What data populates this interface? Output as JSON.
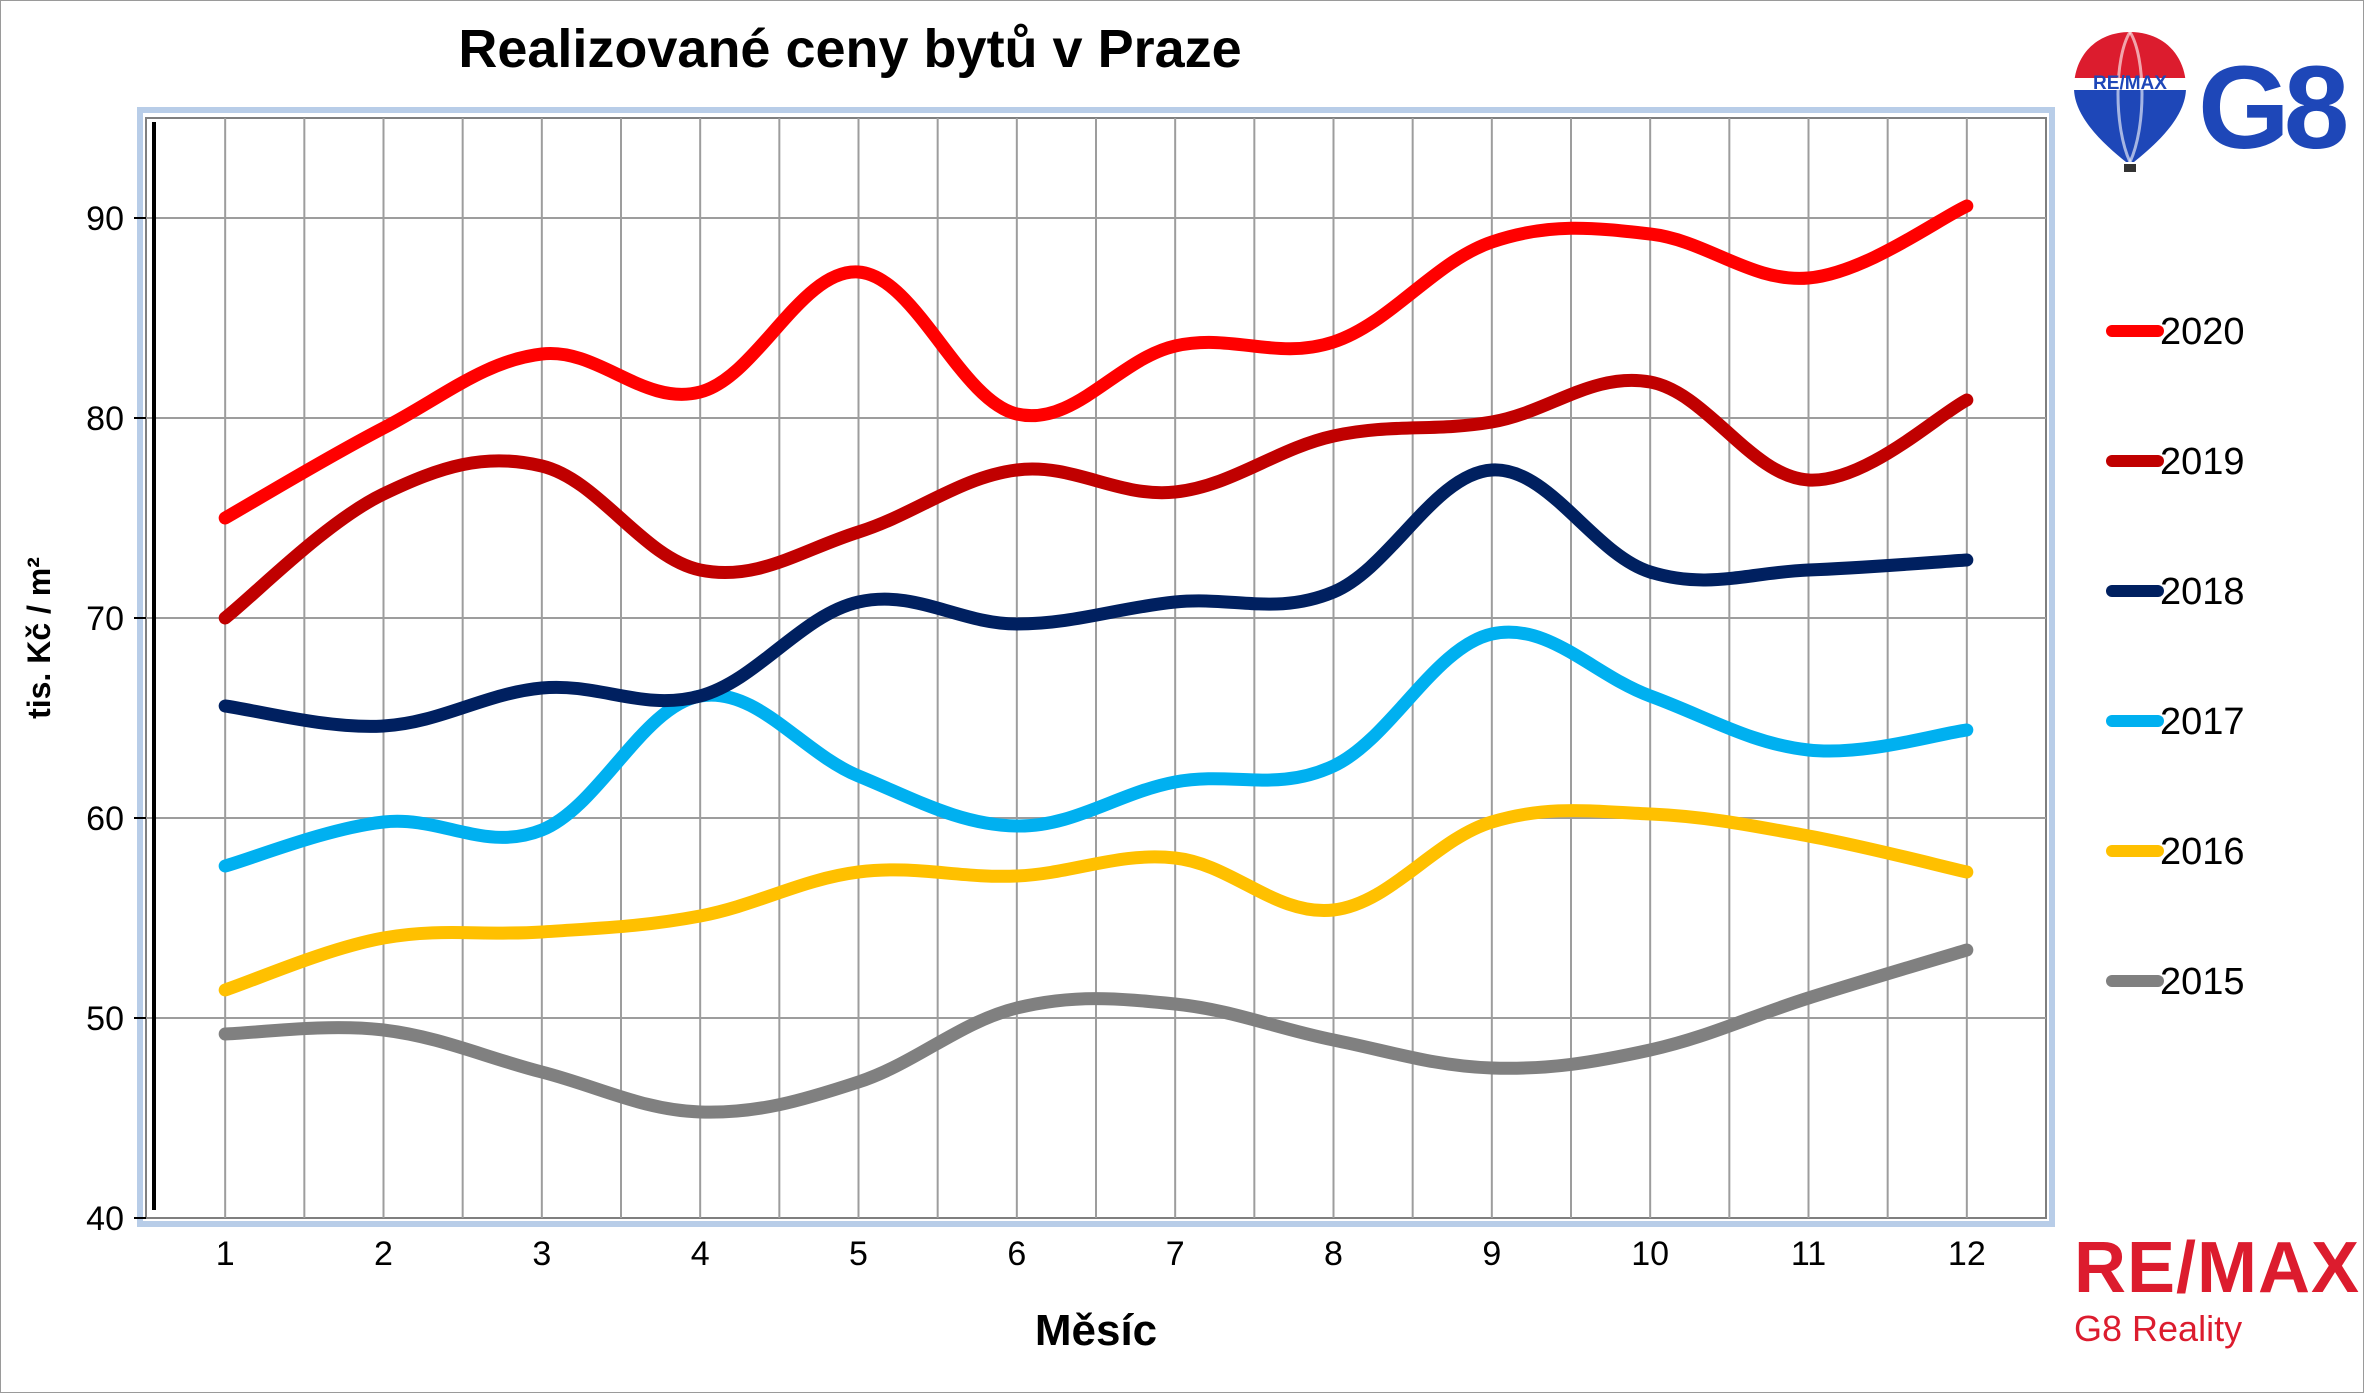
{
  "chart_data": {
    "type": "line",
    "title": "Realizované ceny bytů v Praze",
    "xlabel": "Měsíc",
    "ylabel": "tis. Kč / m²",
    "categories": [
      "1",
      "2",
      "3",
      "4",
      "5",
      "6",
      "7",
      "8",
      "9",
      "10",
      "11",
      "12"
    ],
    "y_ticks": [
      "40",
      "50",
      "60",
      "70",
      "80",
      "90"
    ],
    "ylim": [
      40,
      95
    ],
    "grid": true,
    "legend_position": "right",
    "series": [
      {
        "name": "2020",
        "color": "#ff0000",
        "values": [
          75.0,
          79.5,
          83.2,
          81.3,
          87.3,
          80.2,
          83.6,
          83.8,
          88.8,
          89.2,
          87.0,
          90.6
        ]
      },
      {
        "name": "2019",
        "color": "#c00000",
        "values": [
          70.0,
          76.2,
          77.6,
          72.4,
          74.3,
          77.4,
          76.3,
          79.1,
          79.8,
          81.8,
          76.9,
          80.9
        ]
      },
      {
        "name": "2018",
        "color": "#002060",
        "values": [
          65.6,
          64.6,
          66.5,
          66.1,
          70.8,
          69.7,
          70.8,
          71.3,
          77.4,
          72.3,
          72.4,
          72.9
        ]
      },
      {
        "name": "2017",
        "color": "#00b0f0",
        "values": [
          57.6,
          59.8,
          59.4,
          66.1,
          62.1,
          59.6,
          61.8,
          62.6,
          69.2,
          66.1,
          63.4,
          64.4
        ]
      },
      {
        "name": "2016",
        "color": "#ffc000",
        "values": [
          51.4,
          54.0,
          54.3,
          55.1,
          57.3,
          57.1,
          58.0,
          55.4,
          59.8,
          60.2,
          59.1,
          57.3
        ]
      },
      {
        "name": "2015",
        "color": "#808080",
        "values": [
          49.2,
          49.4,
          47.3,
          45.3,
          46.8,
          50.5,
          50.7,
          48.9,
          47.5,
          48.4,
          51.0,
          53.4
        ]
      }
    ]
  },
  "branding": {
    "logo_top_text": "RE/MAX",
    "logo_top_mark": "G8",
    "brand_name": "RE/MAX",
    "brand_sub": "G8 Reality",
    "brand_color": "#dc1c2e",
    "brand_blue": "#1e47b8"
  }
}
